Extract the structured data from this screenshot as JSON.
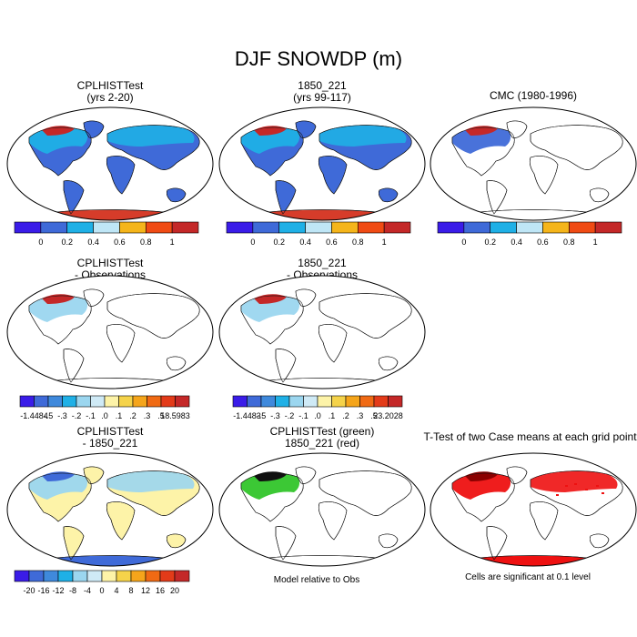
{
  "figure": {
    "title": "DJF SNOWDP (m)"
  },
  "colors": {
    "scale7": [
      "#3a1ce8",
      "#3f6ad8",
      "#1fb0e6",
      "#bfe6f6",
      "#f5b51b",
      "#f04b14",
      "#c42828"
    ],
    "scale12": [
      "#3a1ce8",
      "#3f6ad8",
      "#3f89dc",
      "#1fb0e6",
      "#9bd6ef",
      "#cfeaf6",
      "#fdf3a8",
      "#f5d34a",
      "#f5a51b",
      "#f06a14",
      "#e33b19",
      "#c42828"
    ],
    "snow_blue": "#3f6ad8",
    "ocean_red": "#d63c2a",
    "diff_yellow": "#fdf3a8",
    "green": "#27c21f",
    "sig_red": "#ee1111"
  },
  "panels": [
    {
      "title_lines": [
        "CPLHISTTest",
        "(yrs 2-20)"
      ],
      "style": "model"
    },
    {
      "title_lines": [
        "1850_221",
        "(yrs 99-117)"
      ],
      "style": "model"
    },
    {
      "title_lines": [
        "CMC (1980-1996)"
      ],
      "style": "obs"
    },
    {
      "title_lines": [
        "CPLHISTTest",
        "- Observations"
      ],
      "style": "bias"
    },
    {
      "title_lines": [
        "1850_221",
        "- Observations"
      ],
      "style": "bias"
    },
    {
      "title_lines": [
        "CPLHISTTest",
        "- 1850_221"
      ],
      "style": "diff"
    },
    {
      "title_lines": [
        "CPLHISTTest (green)",
        "1850_221 (red)"
      ],
      "style": "overlay"
    },
    {
      "title_lines": [
        "T-Test of two Case means at each grid point"
      ],
      "style": "ttest"
    }
  ],
  "colorbars": [
    {
      "labels": [
        "0",
        "0.2",
        "0.4",
        "0.6",
        "0.8",
        "1"
      ]
    },
    {
      "labels": [
        "0",
        "0.2",
        "0.4",
        "0.6",
        "0.8",
        "1"
      ]
    },
    {
      "labels": [
        "0",
        "0.2",
        "0.4",
        "0.6",
        "0.8",
        "1"
      ]
    },
    {
      "labels": [
        "-1.4484",
        "-.5",
        "-.3",
        "-.2",
        "-.1",
        ".0",
        ".1",
        ".2",
        ".3",
        ".5",
        "18.5983"
      ]
    },
    {
      "labels": [
        "-1.4483",
        "-.5",
        "-.3",
        "-.2",
        "-.1",
        ".0",
        ".1",
        ".2",
        ".3",
        ".5",
        "23.2028"
      ]
    },
    {
      "labels": [
        "-20",
        "-16",
        "-12",
        "-8",
        "-4",
        "0",
        "4",
        "8",
        "12",
        "16",
        "20"
      ]
    }
  ],
  "captions": {
    "overlay": "Model relative to Obs",
    "ttest": "Cells are significant at 0.1 level"
  },
  "chart_data": {
    "type": "heatmap",
    "title": "DJF SNOWDP (m)",
    "variable": "SNOWDP",
    "units": "m",
    "season": "DJF",
    "map_projection": "Robinson",
    "panels": [
      {
        "name": "CPLHISTTest (yrs 2-20)",
        "contour_levels": [
          0,
          0.2,
          0.4,
          0.6,
          0.8,
          1
        ]
      },
      {
        "name": "1850_221 (yrs 99-117)",
        "contour_levels": [
          0,
          0.2,
          0.4,
          0.6,
          0.8,
          1
        ]
      },
      {
        "name": "CMC (1980-1996)",
        "contour_levels": [
          0,
          0.2,
          0.4,
          0.6,
          0.8,
          1
        ]
      },
      {
        "name": "CPLHISTTest - Observations",
        "min": -1.4484,
        "max": 18.5983,
        "contour_levels": [
          -0.5,
          -0.3,
          -0.2,
          -0.1,
          0.0,
          0.1,
          0.2,
          0.3,
          0.5
        ]
      },
      {
        "name": "1850_221 - Observations",
        "min": -1.4483,
        "max": 23.2028,
        "contour_levels": [
          -0.5,
          -0.3,
          -0.2,
          -0.1,
          0.0,
          0.1,
          0.2,
          0.3,
          0.5
        ]
      },
      {
        "name": "CPLHISTTest - 1850_221",
        "contour_levels": [
          -20,
          -16,
          -12,
          -8,
          -4,
          0,
          4,
          8,
          12,
          16,
          20
        ]
      },
      {
        "name": "CPLHISTTest (green) 1850_221 (red)",
        "note": "Model relative to Obs"
      },
      {
        "name": "T-Test of two Case means at each grid point",
        "note": "Cells are significant at 0.1 level"
      }
    ]
  }
}
